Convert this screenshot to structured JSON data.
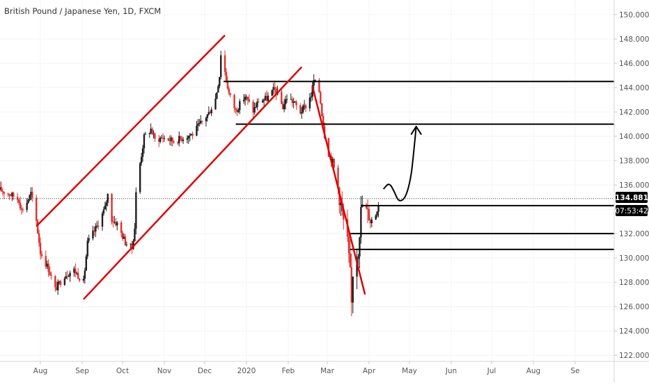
{
  "header": {
    "title": "British Pound / Japanese Yen, 1D, FXCM"
  },
  "price_badge": {
    "price": "134.881",
    "countdown": "07:53:42"
  },
  "colors": {
    "up": "#1e1e1e",
    "down": "#e0312b",
    "trendline": "#e00000",
    "level": "#000000",
    "badge": "#000000"
  },
  "chart_data": {
    "type": "candlestick",
    "title": "British Pound / Japanese Yen, 1D, FXCM",
    "y_axis": {
      "side": "right",
      "ylim": [
        121.5,
        151.2
      ],
      "ticks": [
        "122.000",
        "124.000",
        "126.000",
        "128.000",
        "130.000",
        "132.000",
        "134.000",
        "136.000",
        "138.000",
        "140.000",
        "142.000",
        "144.000",
        "146.000",
        "148.000",
        "150.000"
      ]
    },
    "x_axis": {
      "xlim": [
        "2019-07-02",
        "2020-09-30"
      ],
      "ticks": [
        {
          "label": "Aug",
          "date": "2019-08-01"
        },
        {
          "label": "Sep",
          "date": "2019-09-01"
        },
        {
          "label": "Oct",
          "date": "2019-10-01"
        },
        {
          "label": "Nov",
          "date": "2019-11-01"
        },
        {
          "label": "Dec",
          "date": "2019-12-01"
        },
        {
          "label": "2020",
          "date": "2020-01-01"
        },
        {
          "label": "Feb",
          "date": "2020-02-01"
        },
        {
          "label": "Mar",
          "date": "2020-03-01"
        },
        {
          "label": "Apr",
          "date": "2020-04-01"
        },
        {
          "label": "May",
          "date": "2020-05-01"
        },
        {
          "label": "Jun",
          "date": "2020-06-01"
        },
        {
          "label": "Jul",
          "date": "2020-07-01"
        },
        {
          "label": "Aug",
          "date": "2020-08-01"
        },
        {
          "label": "Se",
          "date": "2020-09-01"
        }
      ]
    },
    "price_path": [
      {
        "date": "2019-07-02",
        "price": 135.6
      },
      {
        "date": "2019-07-10",
        "price": 135.2
      },
      {
        "date": "2019-07-16",
        "price": 134.8
      },
      {
        "date": "2019-07-18",
        "price": 133.9
      },
      {
        "date": "2019-07-22",
        "price": 134.6
      },
      {
        "date": "2019-07-25",
        "price": 135.3
      },
      {
        "date": "2019-07-29",
        "price": 133.0
      },
      {
        "date": "2019-08-01",
        "price": 130.5
      },
      {
        "date": "2019-08-07",
        "price": 129.1
      },
      {
        "date": "2019-08-12",
        "price": 127.4
      },
      {
        "date": "2019-08-19",
        "price": 128.6
      },
      {
        "date": "2019-08-26",
        "price": 129.0
      },
      {
        "date": "2019-09-02",
        "price": 128.0
      },
      {
        "date": "2019-09-05",
        "price": 131.2
      },
      {
        "date": "2019-09-12",
        "price": 132.6
      },
      {
        "date": "2019-09-18",
        "price": 134.1
      },
      {
        "date": "2019-09-20",
        "price": 135.2
      },
      {
        "date": "2019-09-23",
        "price": 133.2
      },
      {
        "date": "2019-09-27",
        "price": 132.8
      },
      {
        "date": "2019-10-03",
        "price": 131.3
      },
      {
        "date": "2019-10-08",
        "price": 130.8
      },
      {
        "date": "2019-10-10",
        "price": 132.5
      },
      {
        "date": "2019-10-11",
        "price": 135.3
      },
      {
        "date": "2019-10-14",
        "price": 137.8
      },
      {
        "date": "2019-10-17",
        "price": 139.9
      },
      {
        "date": "2019-10-22",
        "price": 140.6
      },
      {
        "date": "2019-10-25",
        "price": 139.7
      },
      {
        "date": "2019-10-31",
        "price": 139.9
      },
      {
        "date": "2019-11-08",
        "price": 139.6
      },
      {
        "date": "2019-11-15",
        "price": 139.9
      },
      {
        "date": "2019-11-22",
        "price": 140.2
      },
      {
        "date": "2019-11-29",
        "price": 141.2
      },
      {
        "date": "2019-12-04",
        "price": 141.9
      },
      {
        "date": "2019-12-09",
        "price": 143.1
      },
      {
        "date": "2019-12-12",
        "price": 145.0
      },
      {
        "date": "2019-12-13",
        "price": 146.8
      },
      {
        "date": "2019-12-16",
        "price": 145.3
      },
      {
        "date": "2019-12-19",
        "price": 143.5
      },
      {
        "date": "2019-12-24",
        "price": 142.1
      },
      {
        "date": "2019-12-31",
        "price": 143.3
      },
      {
        "date": "2020-01-06",
        "price": 142.1
      },
      {
        "date": "2020-01-10",
        "price": 142.9
      },
      {
        "date": "2020-01-16",
        "price": 143.1
      },
      {
        "date": "2020-01-22",
        "price": 143.9
      },
      {
        "date": "2020-01-28",
        "price": 142.4
      },
      {
        "date": "2020-01-31",
        "price": 143.2
      },
      {
        "date": "2020-02-05",
        "price": 142.8
      },
      {
        "date": "2020-02-10",
        "price": 142.0
      },
      {
        "date": "2020-02-14",
        "price": 142.5
      },
      {
        "date": "2020-02-18",
        "price": 143.4
      },
      {
        "date": "2020-02-20",
        "price": 144.6
      },
      {
        "date": "2020-02-24",
        "price": 143.7
      },
      {
        "date": "2020-02-28",
        "price": 140.1
      },
      {
        "date": "2020-03-02",
        "price": 138.6
      },
      {
        "date": "2020-03-05",
        "price": 137.9
      },
      {
        "date": "2020-03-09",
        "price": 135.8
      },
      {
        "date": "2020-03-12",
        "price": 133.6
      },
      {
        "date": "2020-03-16",
        "price": 131.2
      },
      {
        "date": "2020-03-18",
        "price": 128.6
      },
      {
        "date": "2020-03-19",
        "price": 126.2
      },
      {
        "date": "2020-03-20",
        "price": 128.9
      },
      {
        "date": "2020-03-24",
        "price": 130.8
      },
      {
        "date": "2020-03-26",
        "price": 133.8
      },
      {
        "date": "2020-03-27",
        "price": 134.4
      },
      {
        "date": "2020-03-31",
        "price": 133.6
      },
      {
        "date": "2020-04-02",
        "price": 133.0
      },
      {
        "date": "2020-04-06",
        "price": 133.6
      },
      {
        "date": "2020-04-08",
        "price": 134.5
      }
    ],
    "levels": [
      {
        "price": 144.5,
        "from": "2019-12-15",
        "to": "2020-09-30"
      },
      {
        "price": 141.0,
        "from": "2019-12-24",
        "to": "2020-09-30"
      },
      {
        "price": 134.3,
        "from": "2020-03-26",
        "to": "2020-09-30"
      },
      {
        "price": 132.0,
        "from": "2020-03-18",
        "to": "2020-09-30"
      },
      {
        "price": 130.7,
        "from": "2020-03-18",
        "to": "2020-09-30"
      }
    ],
    "last_price_line": 134.88,
    "trendlines": [
      {
        "from": {
          "date": "2019-07-29",
          "price": 132.6
        },
        "to": {
          "date": "2019-12-16",
          "price": 148.3
        }
      },
      {
        "from": {
          "date": "2019-09-02",
          "price": 126.6
        },
        "to": {
          "date": "2020-02-11",
          "price": 145.7
        }
      },
      {
        "from": {
          "date": "2020-02-19",
          "price": 144.1
        },
        "to": {
          "date": "2020-03-29",
          "price": 127.0
        }
      }
    ],
    "projection_path": [
      {
        "date": "2020-04-12",
        "price": 135.7
      },
      {
        "date": "2020-04-16",
        "price": 136.2
      },
      {
        "date": "2020-04-20",
        "price": 135.4
      },
      {
        "date": "2020-04-23",
        "price": 134.6
      },
      {
        "date": "2020-04-28",
        "price": 134.9
      },
      {
        "date": "2020-05-02",
        "price": 136.5
      },
      {
        "date": "2020-05-04",
        "price": 138.5
      },
      {
        "date": "2020-05-06",
        "price": 140.8
      }
    ]
  }
}
